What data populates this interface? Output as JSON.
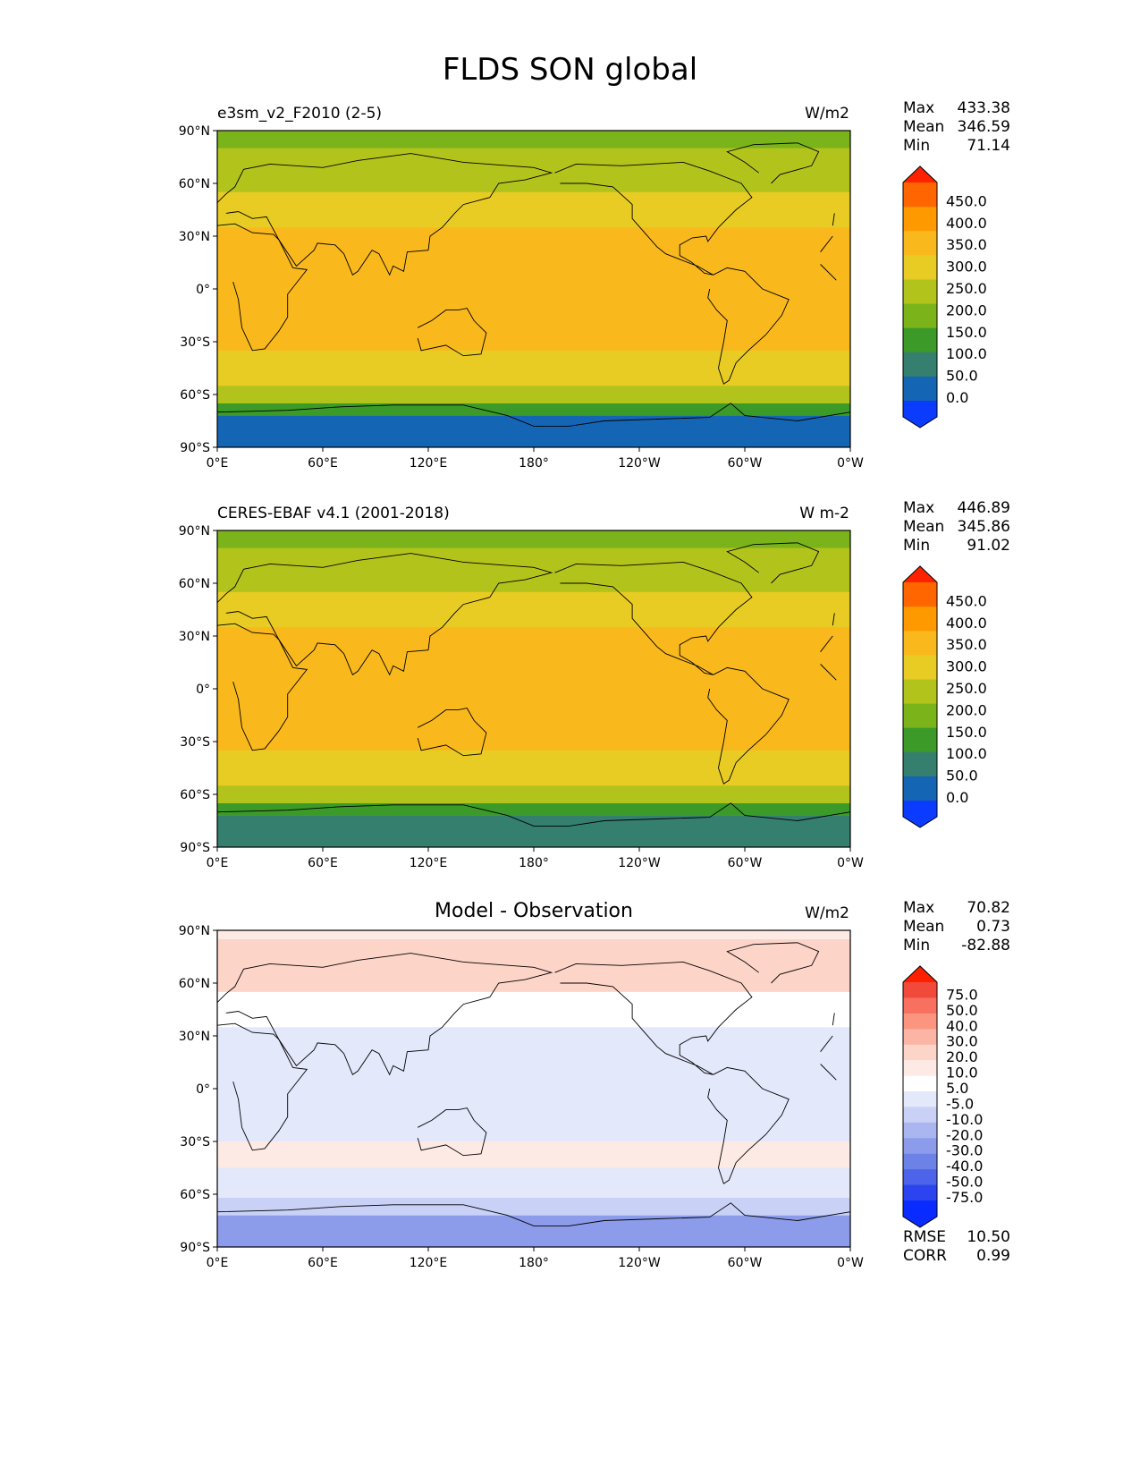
{
  "title": "FLDS SON global",
  "lat_ticks": [
    "90°N",
    "60°N",
    "30°N",
    "0°",
    "30°S",
    "60°S",
    "90°S"
  ],
  "lon_ticks": [
    "0°E",
    "60°E",
    "120°E",
    "180°",
    "120°W",
    "60°W",
    "0°W"
  ],
  "panels": [
    {
      "label": "e3sm_v2_F2010 (2-5)",
      "units": "W/m2",
      "stats": {
        "max_label": "Max",
        "max": "433.38",
        "mean_label": "Mean",
        "mean": "346.59",
        "min_label": "Min",
        "min": "71.14"
      },
      "colorbar_ticks": [
        "450.0",
        "400.0",
        "350.0",
        "300.0",
        "250.0",
        "200.0",
        "150.0",
        "100.0",
        "50.0",
        "0.0"
      ]
    },
    {
      "label": "CERES-EBAF v4.1 (2001-2018)",
      "units": "W m-2",
      "stats": {
        "max_label": "Max",
        "max": "446.89",
        "mean_label": "Mean",
        "mean": "345.86",
        "min_label": "Min",
        "min": "91.02"
      },
      "colorbar_ticks": [
        "450.0",
        "400.0",
        "350.0",
        "300.0",
        "250.0",
        "200.0",
        "150.0",
        "100.0",
        "50.0",
        "0.0"
      ]
    },
    {
      "title": "Model - Observation",
      "units": "W/m2",
      "stats": {
        "max_label": "Max",
        "max": "70.82",
        "mean_label": "Mean",
        "mean": "0.73",
        "min_label": "Min",
        "min": "-82.88"
      },
      "colorbar_ticks": [
        "75.0",
        "50.0",
        "40.0",
        "30.0",
        "20.0",
        "10.0",
        "5.0",
        "-5.0",
        "-10.0",
        "-20.0",
        "-30.0",
        "-40.0",
        "-50.0",
        "-75.0"
      ],
      "rmse_label": "RMSE",
      "rmse": "10.50",
      "corr_label": "CORR",
      "corr": "0.99"
    }
  ],
  "colors": {
    "abs_colorbar": [
      "#ff2200",
      "#ff6600",
      "#ff9900",
      "#f9b81c",
      "#e8cc24",
      "#b2c41c",
      "#7bb41a",
      "#3b9a28",
      "#357f6e",
      "#1565b5",
      "#0a3bff"
    ],
    "diff_colorbar": [
      "#ff2000",
      "#f24a3a",
      "#f77060",
      "#fb9580",
      "#fcb5a4",
      "#fdd4c8",
      "#fdeae4",
      "#ffffff",
      "#e3e8fb",
      "#c9d1f6",
      "#a9b6f0",
      "#8c9cea",
      "#6d82e6",
      "#4d64ea",
      "#2c44f0",
      "#0a2bff"
    ]
  },
  "chart_data": [
    {
      "type": "heatmap",
      "title": "e3sm_v2_F2010 (2-5)",
      "units": "W/m2",
      "xlim": [
        0,
        360
      ],
      "ylim": [
        -90,
        90
      ],
      "zonal_mean_bands": [
        {
          "lat": [
            -90,
            -72
          ],
          "value": 90
        },
        {
          "lat": [
            -72,
            -65
          ],
          "value": 190
        },
        {
          "lat": [
            -65,
            -55
          ],
          "value": 270
        },
        {
          "lat": [
            -55,
            -35
          ],
          "value": 320
        },
        {
          "lat": [
            -35,
            -15
          ],
          "value": 350
        },
        {
          "lat": [
            -15,
            15
          ],
          "value": 395
        },
        {
          "lat": [
            15,
            35
          ],
          "value": 370
        },
        {
          "lat": [
            35,
            55
          ],
          "value": 330
        },
        {
          "lat": [
            55,
            80
          ],
          "value": 290
        },
        {
          "lat": [
            80,
            90
          ],
          "value": 230
        }
      ],
      "colorbar_levels": [
        0,
        50,
        100,
        150,
        200,
        250,
        300,
        350,
        400,
        450
      ],
      "max": 433.38,
      "mean": 346.59,
      "min": 71.14
    },
    {
      "type": "heatmap",
      "title": "CERES-EBAF v4.1 (2001-2018)",
      "units": "W m-2",
      "xlim": [
        0,
        360
      ],
      "ylim": [
        -90,
        90
      ],
      "zonal_mean_bands": [
        {
          "lat": [
            -90,
            -72
          ],
          "value": 130
        },
        {
          "lat": [
            -72,
            -65
          ],
          "value": 190
        },
        {
          "lat": [
            -65,
            -55
          ],
          "value": 270
        },
        {
          "lat": [
            -55,
            -35
          ],
          "value": 320
        },
        {
          "lat": [
            -35,
            -15
          ],
          "value": 350
        },
        {
          "lat": [
            -15,
            15
          ],
          "value": 395
        },
        {
          "lat": [
            15,
            35
          ],
          "value": 370
        },
        {
          "lat": [
            35,
            55
          ],
          "value": 320
        },
        {
          "lat": [
            55,
            80
          ],
          "value": 280
        },
        {
          "lat": [
            80,
            90
          ],
          "value": 220
        }
      ],
      "colorbar_levels": [
        0,
        50,
        100,
        150,
        200,
        250,
        300,
        350,
        400,
        450
      ],
      "max": 446.89,
      "mean": 345.86,
      "min": 91.02
    },
    {
      "type": "heatmap",
      "title": "Model - Observation",
      "units": "W/m2",
      "xlim": [
        0,
        360
      ],
      "ylim": [
        -90,
        90
      ],
      "zonal_mean_bands": [
        {
          "lat": [
            -90,
            -72
          ],
          "value": -25
        },
        {
          "lat": [
            -72,
            -62
          ],
          "value": -8
        },
        {
          "lat": [
            -62,
            -45
          ],
          "value": 0
        },
        {
          "lat": [
            -45,
            -30
          ],
          "value": 12
        },
        {
          "lat": [
            -30,
            35
          ],
          "value": 0
        },
        {
          "lat": [
            35,
            55
          ],
          "value": 8
        },
        {
          "lat": [
            55,
            85
          ],
          "value": 22
        },
        {
          "lat": [
            85,
            90
          ],
          "value": 15
        }
      ],
      "colorbar_levels": [
        -75,
        -50,
        -40,
        -30,
        -20,
        -10,
        -5,
        5,
        10,
        20,
        30,
        40,
        50,
        75
      ],
      "max": 70.82,
      "mean": 0.73,
      "min": -82.88,
      "rmse": 10.5,
      "corr": 0.99
    }
  ]
}
